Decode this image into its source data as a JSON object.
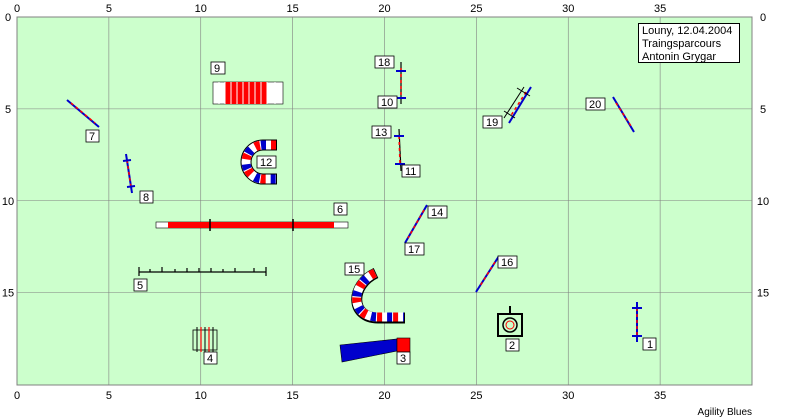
{
  "info": {
    "line1": "Louny, 12.04.2004",
    "line2": "Traingsparcours",
    "line3": "Antonin Grygar"
  },
  "footer": "Agility Blues",
  "axes": {
    "x_ticks": [
      "0",
      "5",
      "10",
      "15",
      "20",
      "25",
      "30",
      "35"
    ],
    "y_ticks": [
      "0",
      "5",
      "10",
      "15"
    ]
  },
  "colors": {
    "field": "#ccffcc",
    "red": "#ff0000",
    "blue": "#0000cc"
  },
  "obstacles": [
    {
      "number": "1",
      "type": "hurdle"
    },
    {
      "number": "2",
      "type": "table"
    },
    {
      "number": "3",
      "type": "collapsed-tunnel"
    },
    {
      "number": "4",
      "type": "weave-poles"
    },
    {
      "number": "5",
      "type": "dog-walk"
    },
    {
      "number": "6",
      "type": "long-tunnel"
    },
    {
      "number": "7",
      "type": "hurdle"
    },
    {
      "number": "8",
      "type": "hurdle"
    },
    {
      "number": "9",
      "type": "tunnel"
    },
    {
      "number": "10",
      "type": "hurdle"
    },
    {
      "number": "11",
      "type": "hurdle"
    },
    {
      "number": "12",
      "type": "curved-tunnel"
    },
    {
      "number": "13",
      "type": "hurdle"
    },
    {
      "number": "14",
      "type": "hurdle"
    },
    {
      "number": "15",
      "type": "curved-tunnel"
    },
    {
      "number": "16",
      "type": "hurdle"
    },
    {
      "number": "17",
      "type": "hurdle"
    },
    {
      "number": "18",
      "type": "hurdle"
    },
    {
      "number": "19",
      "type": "double-jump"
    },
    {
      "number": "20",
      "type": "hurdle"
    }
  ]
}
